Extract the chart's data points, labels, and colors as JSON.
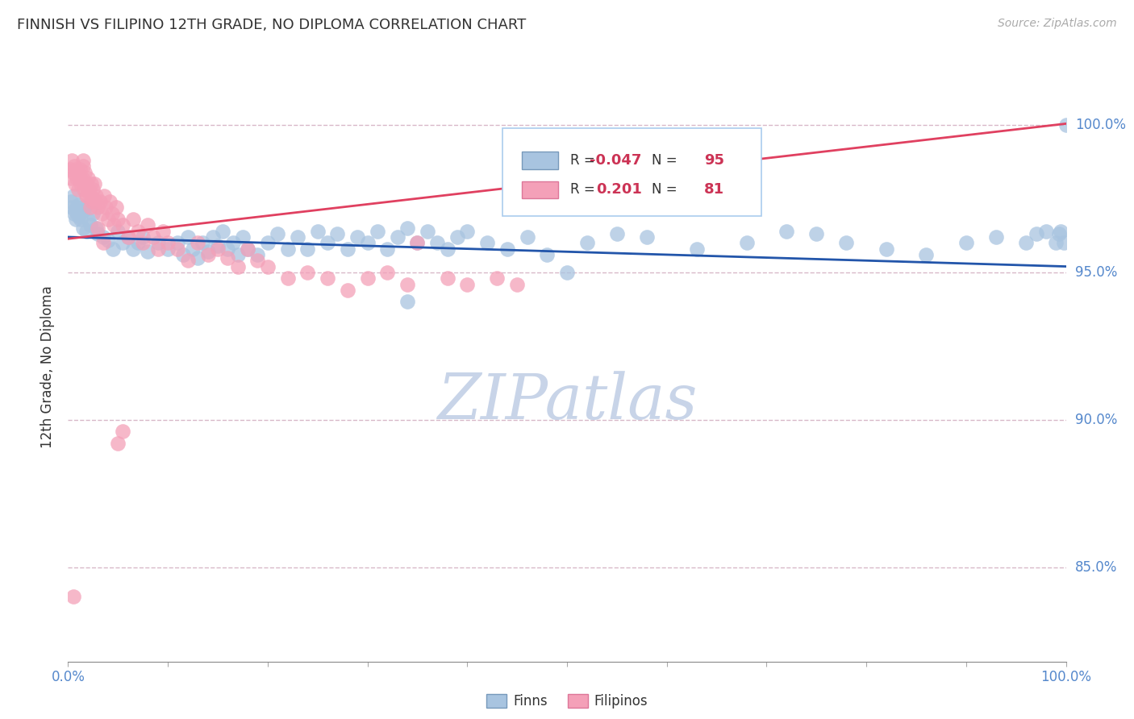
{
  "title": "FINNISH VS FILIPINO 12TH GRADE, NO DIPLOMA CORRELATION CHART",
  "source_text": "Source: ZipAtlas.com",
  "ylabel": "12th Grade, No Diploma",
  "xlim": [
    0.0,
    1.0
  ],
  "ylim": [
    0.818,
    1.018
  ],
  "yticks": [
    0.85,
    0.9,
    0.95,
    1.0
  ],
  "ytick_labels": [
    "85.0%",
    "90.0%",
    "95.0%",
    "100.0%"
  ],
  "xticks": [
    0.0,
    0.1,
    0.2,
    0.3,
    0.4,
    0.5,
    0.6,
    0.7,
    0.8,
    0.9,
    1.0
  ],
  "xtick_labels_show": [
    "0.0%",
    "",
    "",
    "",
    "",
    "",
    "",
    "",
    "",
    "",
    "100.0%"
  ],
  "legend_r_finn": "-0.047",
  "legend_n_finn": "95",
  "legend_r_fil": "0.201",
  "legend_n_fil": "81",
  "finn_color": "#a8c4e0",
  "fil_color": "#f4a0b8",
  "finn_line_color": "#2255aa",
  "fil_line_color": "#e04060",
  "background_color": "#ffffff",
  "grid_color": "#d8b8c8",
  "watermark": "ZIPatlas",
  "watermark_color": "#c8d4e8",
  "finns_x": [
    0.003,
    0.004,
    0.005,
    0.006,
    0.007,
    0.008,
    0.009,
    0.01,
    0.011,
    0.012,
    0.013,
    0.014,
    0.015,
    0.016,
    0.018,
    0.02,
    0.022,
    0.025,
    0.028,
    0.03,
    0.035,
    0.04,
    0.045,
    0.05,
    0.055,
    0.06,
    0.065,
    0.07,
    0.075,
    0.08,
    0.09,
    0.1,
    0.11,
    0.115,
    0.12,
    0.125,
    0.13,
    0.135,
    0.14,
    0.145,
    0.15,
    0.155,
    0.16,
    0.165,
    0.17,
    0.175,
    0.18,
    0.19,
    0.2,
    0.21,
    0.22,
    0.23,
    0.24,
    0.25,
    0.26,
    0.27,
    0.28,
    0.29,
    0.3,
    0.31,
    0.32,
    0.33,
    0.34,
    0.35,
    0.36,
    0.37,
    0.38,
    0.39,
    0.4,
    0.42,
    0.44,
    0.46,
    0.48,
    0.5,
    0.52,
    0.55,
    0.58,
    0.63,
    0.68,
    0.72,
    0.75,
    0.78,
    0.82,
    0.86,
    0.9,
    0.93,
    0.96,
    0.97,
    0.98,
    0.99,
    0.993,
    0.995,
    0.998,
    1.0,
    0.34
  ],
  "finns_y": [
    0.974,
    0.972,
    0.976,
    0.97,
    0.971,
    0.968,
    0.972,
    0.969,
    0.973,
    0.97,
    0.968,
    0.972,
    0.965,
    0.971,
    0.964,
    0.968,
    0.966,
    0.97,
    0.965,
    0.963,
    0.962,
    0.961,
    0.958,
    0.964,
    0.96,
    0.962,
    0.958,
    0.96,
    0.962,
    0.957,
    0.96,
    0.958,
    0.96,
    0.956,
    0.962,
    0.958,
    0.955,
    0.96,
    0.957,
    0.962,
    0.959,
    0.964,
    0.958,
    0.96,
    0.956,
    0.962,
    0.958,
    0.956,
    0.96,
    0.963,
    0.958,
    0.962,
    0.958,
    0.964,
    0.96,
    0.963,
    0.958,
    0.962,
    0.96,
    0.964,
    0.958,
    0.962,
    0.965,
    0.96,
    0.964,
    0.96,
    0.958,
    0.962,
    0.964,
    0.96,
    0.958,
    0.962,
    0.956,
    0.95,
    0.96,
    0.963,
    0.962,
    0.958,
    0.96,
    0.964,
    0.963,
    0.96,
    0.958,
    0.956,
    0.96,
    0.962,
    0.96,
    0.963,
    0.964,
    0.96,
    0.963,
    0.964,
    0.96,
    1.0,
    0.94
  ],
  "filipinos_x": [
    0.002,
    0.003,
    0.004,
    0.005,
    0.006,
    0.007,
    0.008,
    0.009,
    0.01,
    0.011,
    0.012,
    0.013,
    0.014,
    0.015,
    0.016,
    0.017,
    0.018,
    0.019,
    0.02,
    0.021,
    0.022,
    0.023,
    0.024,
    0.025,
    0.026,
    0.027,
    0.028,
    0.03,
    0.032,
    0.034,
    0.036,
    0.038,
    0.04,
    0.042,
    0.044,
    0.046,
    0.048,
    0.05,
    0.055,
    0.06,
    0.065,
    0.07,
    0.075,
    0.08,
    0.085,
    0.09,
    0.095,
    0.1,
    0.11,
    0.12,
    0.13,
    0.14,
    0.15,
    0.16,
    0.17,
    0.18,
    0.19,
    0.2,
    0.22,
    0.24,
    0.26,
    0.28,
    0.3,
    0.32,
    0.34,
    0.35,
    0.38,
    0.4,
    0.43,
    0.45,
    0.05,
    0.055,
    0.015,
    0.018,
    0.022,
    0.025,
    0.03,
    0.035,
    0.01,
    0.012,
    0.005
  ],
  "filipinos_y": [
    0.985,
    0.982,
    0.988,
    0.984,
    0.986,
    0.98,
    0.985,
    0.982,
    0.978,
    0.982,
    0.985,
    0.98,
    0.982,
    0.986,
    0.978,
    0.984,
    0.98,
    0.976,
    0.982,
    0.978,
    0.976,
    0.98,
    0.974,
    0.978,
    0.98,
    0.974,
    0.976,
    0.972,
    0.974,
    0.97,
    0.976,
    0.972,
    0.968,
    0.974,
    0.97,
    0.966,
    0.972,
    0.968,
    0.966,
    0.962,
    0.968,
    0.964,
    0.96,
    0.966,
    0.962,
    0.958,
    0.964,
    0.96,
    0.958,
    0.954,
    0.96,
    0.956,
    0.958,
    0.955,
    0.952,
    0.958,
    0.954,
    0.952,
    0.948,
    0.95,
    0.948,
    0.944,
    0.948,
    0.95,
    0.946,
    0.96,
    0.948,
    0.946,
    0.948,
    0.946,
    0.892,
    0.896,
    0.988,
    0.976,
    0.972,
    0.975,
    0.965,
    0.96,
    0.984,
    0.982,
    0.84
  ]
}
